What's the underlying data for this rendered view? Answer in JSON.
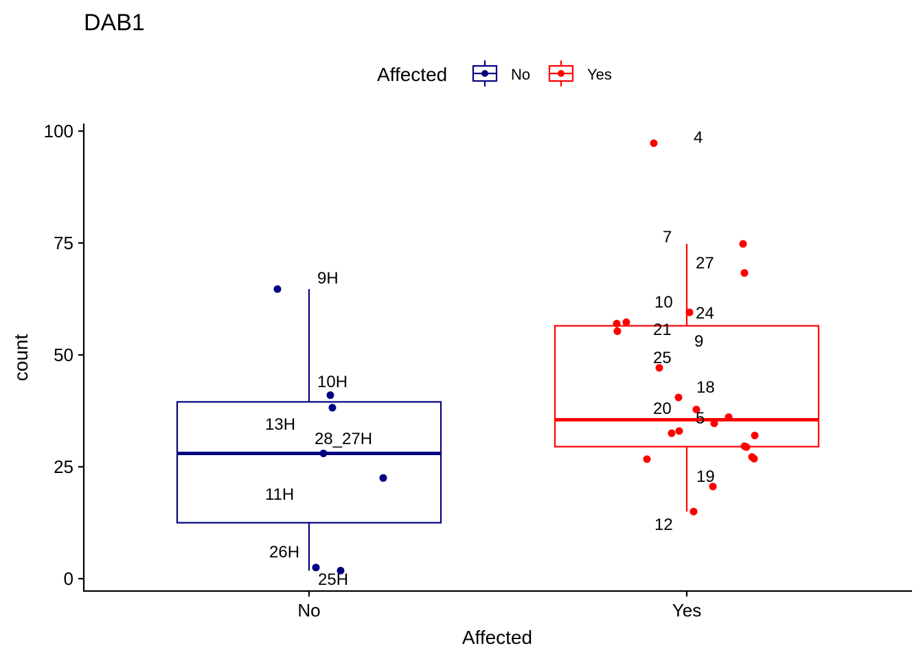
{
  "chart_data": {
    "type": "box",
    "title": "DAB1",
    "xlabel": "Affected",
    "ylabel": "count",
    "ylim": [
      -3,
      101.5
    ],
    "yticks": [
      0,
      25,
      50,
      75,
      100
    ],
    "categories": [
      "No",
      "Yes"
    ],
    "grid": false,
    "legend": {
      "title": "Affected",
      "placement": "top",
      "entries": [
        {
          "label": "No",
          "color": "#000080"
        },
        {
          "label": "Yes",
          "color": "#FF0000"
        }
      ]
    },
    "series": [
      {
        "name": "No",
        "color": "#000080",
        "box": {
          "whisker_low": 1.8,
          "q1": 12.5,
          "median": 28,
          "q3": 39.5,
          "whisker_high": 64.7
        },
        "points": [
          {
            "label": "9H",
            "y": 64.7
          },
          {
            "label": "10H",
            "y": 41.0
          },
          {
            "label": "",
            "y": 38.2
          },
          {
            "label": "13H",
            "y": null
          },
          {
            "label": "28_27H",
            "y": 28.0
          },
          {
            "label": "",
            "y": 22.5
          },
          {
            "label": "11H",
            "y": null
          },
          {
            "label": "26H",
            "y": 2.5
          },
          {
            "label": "25H",
            "y": 1.8
          }
        ]
      },
      {
        "name": "Yes",
        "color": "#FF0000",
        "box": {
          "whisker_low": 15.0,
          "q1": 29.5,
          "median": 35.5,
          "q3": 56.5,
          "whisker_high": 74.8
        },
        "points": [
          {
            "label": "4",
            "y": 97.3
          },
          {
            "label": "7",
            "y": 74.8
          },
          {
            "label": "27",
            "y": 68.3
          },
          {
            "label": "10",
            "y": 59.5
          },
          {
            "label": "24",
            "y": 57.3
          },
          {
            "label": "21",
            "y": 57.0
          },
          {
            "label": "9",
            "y": 55.3
          },
          {
            "label": "25",
            "y": 47.1
          },
          {
            "label": "18",
            "y": 40.5
          },
          {
            "label": "20",
            "y": 37.8
          },
          {
            "label": "5",
            "y": 36.1
          },
          {
            "label": "",
            "y": 34.7
          },
          {
            "label": "",
            "y": 33.0
          },
          {
            "label": "",
            "y": 32.5
          },
          {
            "label": "",
            "y": 32.0
          },
          {
            "label": "",
            "y": 29.6
          },
          {
            "label": "",
            "y": 29.4
          },
          {
            "label": "",
            "y": 27.2
          },
          {
            "label": "",
            "y": 26.8
          },
          {
            "label": "",
            "y": 26.7
          },
          {
            "label": "19",
            "y": 20.6
          },
          {
            "label": "12",
            "y": 15.0
          }
        ]
      }
    ]
  }
}
